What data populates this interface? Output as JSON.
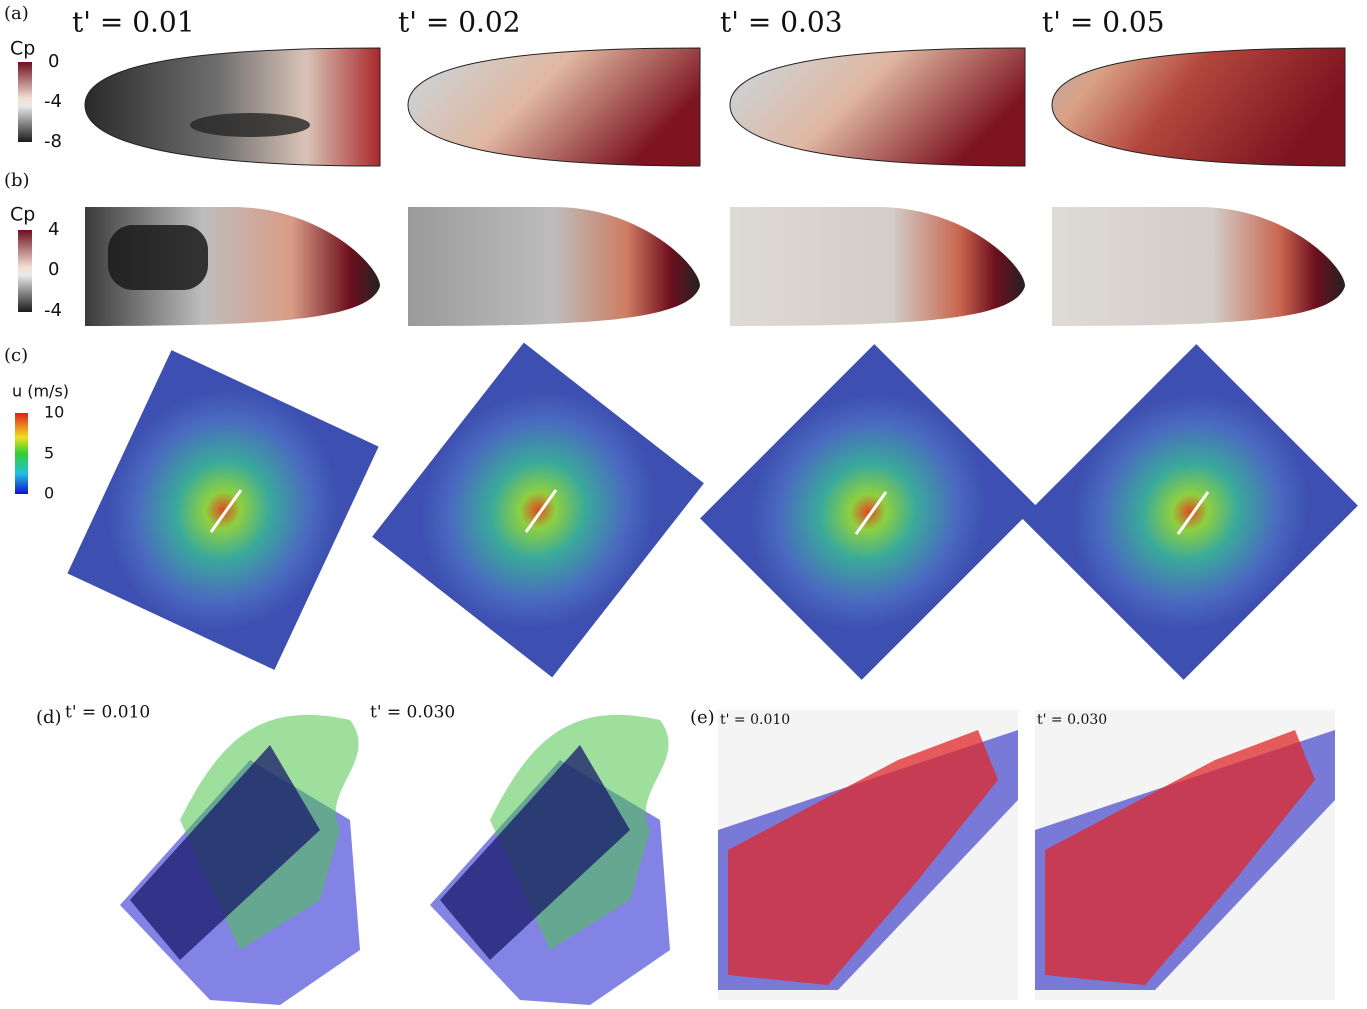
{
  "panel_labels": [
    "(a)",
    "(b)",
    "(c)",
    "(d)",
    "(e)"
  ],
  "time_labels": [
    "t' = 0.01",
    "t' = 0.02",
    "t' = 0.03",
    "t' = 0.05"
  ],
  "colorbars": [
    {
      "title": "Cp",
      "ticks": [
        "0",
        "-4",
        "-8"
      ]
    },
    {
      "title": "Cp",
      "ticks": [
        "4",
        "0",
        "-4"
      ]
    },
    {
      "title": "u (m/s)",
      "ticks": [
        "10",
        "5",
        "0"
      ]
    }
  ],
  "d_labels": [
    "t' = 0.010",
    "t' = 0.030"
  ],
  "e_labels": [
    "t' = 0.010",
    "t' = 0.030"
  ]
}
